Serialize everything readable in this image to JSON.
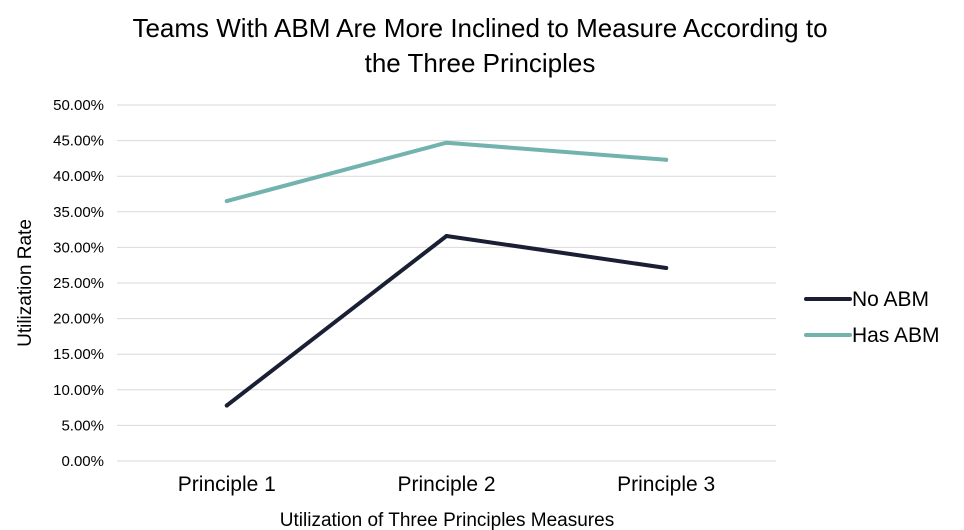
{
  "chart_data": {
    "type": "line",
    "title_line1": "Teams With ABM Are More Inclined to Measure According to",
    "title_line2": "the Three Principles",
    "xlabel": "Utilization of Three Principles Measures",
    "ylabel": "Utilization Rate",
    "categories": [
      "Principle 1",
      "Principle 2",
      "Principle 3"
    ],
    "ylim": [
      0,
      50
    ],
    "yticks": [
      0,
      5,
      10,
      15,
      20,
      25,
      30,
      35,
      40,
      45,
      50
    ],
    "ytick_labels": [
      "0.00%",
      "5.00%",
      "10.00%",
      "15.00%",
      "20.00%",
      "25.00%",
      "30.00%",
      "35.00%",
      "40.00%",
      "45.00%",
      "50.00%"
    ],
    "grid": true,
    "legend_position": "right",
    "series": [
      {
        "name": "No ABM",
        "values": [
          7.8,
          31.6,
          27.1
        ],
        "color": "#1b1f33"
      },
      {
        "name": "Has ABM",
        "values": [
          36.5,
          44.7,
          42.3
        ],
        "color": "#73b3ae"
      }
    ]
  }
}
